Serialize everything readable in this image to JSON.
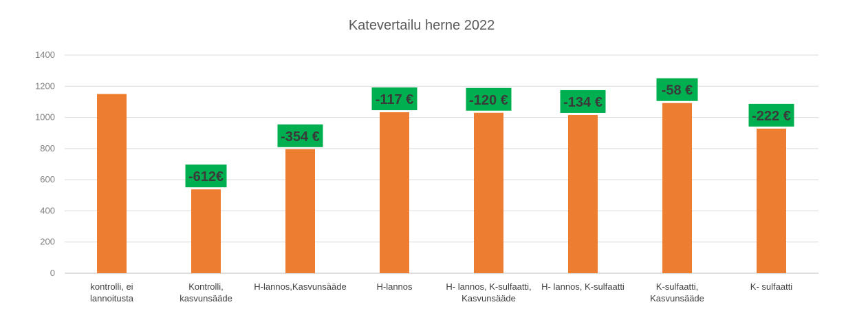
{
  "chart_data": {
    "type": "bar",
    "title": "Katevertailu herne 2022",
    "xlabel": "",
    "ylabel": "",
    "ylim": [
      0,
      1400
    ],
    "yticks": [
      0,
      200,
      400,
      600,
      800,
      1000,
      1200,
      1400
    ],
    "grid": true,
    "legend": "none",
    "categories": [
      [
        "kontrolli, ei",
        "lannoitusta"
      ],
      [
        "Kontrolli,",
        "kasvunsääde"
      ],
      [
        "H-lannos,Kasvunsääde"
      ],
      [
        "H-lannos"
      ],
      [
        "H- lannos, K-sulfaatti,",
        "Kasvunsääde"
      ],
      [
        "H- lannos, K-sulfaatti"
      ],
      [
        "K-sulfaatti,",
        "Kasvunsääde"
      ],
      [
        "K- sulfaatti"
      ]
    ],
    "values": [
      1150,
      538,
      796,
      1033,
      1030,
      1016,
      1092,
      928
    ],
    "annotations": [
      "",
      "-612€",
      "-354 €",
      "-117 €",
      "-120 €",
      "-134 €",
      "-58 €",
      "-222 €"
    ],
    "colors": {
      "bar": "#ED7D31",
      "badge": "#00B050",
      "grid": "#D9D9D9",
      "axis": "#BFBFBF"
    }
  }
}
